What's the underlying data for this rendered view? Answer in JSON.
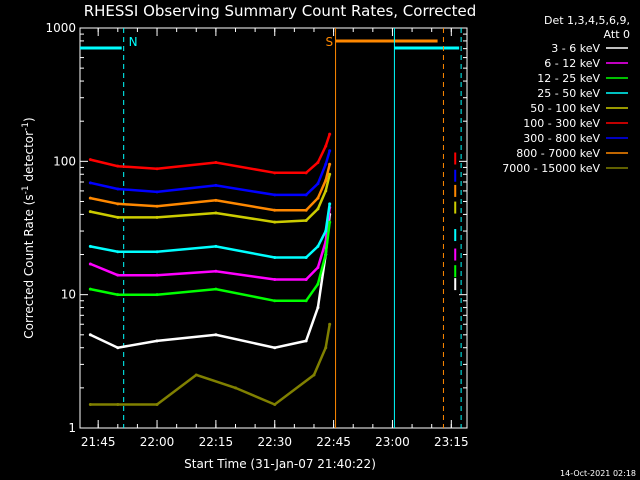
{
  "chart_data": {
    "type": "line",
    "title": "RHESSI Observing Summary Count Rates, Corrected",
    "xlabel": "Start Time (31-Jan-07 21:40:22)",
    "ylabel_prefix": "Corrected Count Rate (s",
    "ylabel_sup1": "-1",
    "ylabel_mid": " detector",
    "ylabel_sup2": "-1",
    "ylabel_suffix": ")",
    "ylog": true,
    "ylim": [
      1,
      1000
    ],
    "xlim": [
      "21:40:22",
      "23:19:00"
    ],
    "x_ticks": [
      "21:45",
      "22:00",
      "22:15",
      "22:30",
      "22:45",
      "23:00",
      "23:15"
    ],
    "y_ticks": [
      "1",
      "10",
      "100",
      "1000"
    ],
    "legend_header": [
      "Det 1,3,4,5,6,9,",
      "Att 0"
    ],
    "series": [
      {
        "name": "3 - 6 keV",
        "color": "#ffffff",
        "values": [
          {
            "t": "21:43",
            "v": 5.0
          },
          {
            "t": "21:50",
            "v": 4.0
          },
          {
            "t": "22:00",
            "v": 4.5
          },
          {
            "t": "22:15",
            "v": 5.0
          },
          {
            "t": "22:30",
            "v": 4.0
          },
          {
            "t": "22:38",
            "v": 4.5
          },
          {
            "t": "22:41",
            "v": 8
          },
          {
            "t": "22:43",
            "v": 20
          },
          {
            "t": "22:44",
            "v": 40
          },
          {
            "t": "23:16",
            "v": 12
          }
        ]
      },
      {
        "name": "6 - 12 keV",
        "color": "#ff00ff",
        "values": [
          {
            "t": "21:43",
            "v": 17
          },
          {
            "t": "21:50",
            "v": 14
          },
          {
            "t": "22:00",
            "v": 14
          },
          {
            "t": "22:15",
            "v": 15
          },
          {
            "t": "22:30",
            "v": 13
          },
          {
            "t": "22:38",
            "v": 13
          },
          {
            "t": "22:41",
            "v": 16
          },
          {
            "t": "22:43",
            "v": 25
          },
          {
            "t": "22:44",
            "v": 45
          },
          {
            "t": "23:16",
            "v": 20
          }
        ]
      },
      {
        "name": "12 - 25 keV",
        "color": "#00ff00",
        "values": [
          {
            "t": "21:43",
            "v": 11
          },
          {
            "t": "21:50",
            "v": 10
          },
          {
            "t": "22:00",
            "v": 10
          },
          {
            "t": "22:15",
            "v": 11
          },
          {
            "t": "22:30",
            "v": 9
          },
          {
            "t": "22:38",
            "v": 9
          },
          {
            "t": "22:41",
            "v": 12
          },
          {
            "t": "22:43",
            "v": 20
          },
          {
            "t": "22:44",
            "v": 35
          },
          {
            "t": "23:16",
            "v": 15
          }
        ]
      },
      {
        "name": "25 - 50 keV",
        "color": "#00ffff",
        "values": [
          {
            "t": "21:43",
            "v": 23
          },
          {
            "t": "21:50",
            "v": 21
          },
          {
            "t": "22:00",
            "v": 21
          },
          {
            "t": "22:15",
            "v": 23
          },
          {
            "t": "22:30",
            "v": 19
          },
          {
            "t": "22:38",
            "v": 19
          },
          {
            "t": "22:41",
            "v": 23
          },
          {
            "t": "22:43",
            "v": 30
          },
          {
            "t": "22:44",
            "v": 48
          },
          {
            "t": "23:16",
            "v": 28
          }
        ]
      },
      {
        "name": "50 - 100 keV",
        "color": "#cccc00",
        "values": [
          {
            "t": "21:43",
            "v": 42
          },
          {
            "t": "21:50",
            "v": 38
          },
          {
            "t": "22:00",
            "v": 38
          },
          {
            "t": "22:15",
            "v": 41
          },
          {
            "t": "22:30",
            "v": 35
          },
          {
            "t": "22:38",
            "v": 36
          },
          {
            "t": "22:41",
            "v": 44
          },
          {
            "t": "22:43",
            "v": 60
          },
          {
            "t": "22:44",
            "v": 80
          },
          {
            "t": "23:16",
            "v": 45
          }
        ]
      },
      {
        "name": "100 - 300 keV",
        "color": "#ff0000",
        "values": [
          {
            "t": "21:43",
            "v": 103
          },
          {
            "t": "21:50",
            "v": 92
          },
          {
            "t": "22:00",
            "v": 88
          },
          {
            "t": "22:15",
            "v": 98
          },
          {
            "t": "22:30",
            "v": 82
          },
          {
            "t": "22:38",
            "v": 82
          },
          {
            "t": "22:41",
            "v": 98
          },
          {
            "t": "22:43",
            "v": 130
          },
          {
            "t": "22:44",
            "v": 160
          },
          {
            "t": "23:16",
            "v": 105
          }
        ]
      },
      {
        "name": "300 - 800 keV",
        "color": "#0000ff",
        "values": [
          {
            "t": "21:43",
            "v": 69
          },
          {
            "t": "21:50",
            "v": 62
          },
          {
            "t": "22:00",
            "v": 59
          },
          {
            "t": "22:15",
            "v": 66
          },
          {
            "t": "22:30",
            "v": 56
          },
          {
            "t": "22:38",
            "v": 56
          },
          {
            "t": "22:41",
            "v": 68
          },
          {
            "t": "22:43",
            "v": 95
          },
          {
            "t": "22:44",
            "v": 120
          },
          {
            "t": "23:16",
            "v": 78
          }
        ]
      },
      {
        "name": "800 - 7000 keV",
        "color": "#ff8800",
        "values": [
          {
            "t": "21:43",
            "v": 53
          },
          {
            "t": "21:50",
            "v": 48
          },
          {
            "t": "22:00",
            "v": 46
          },
          {
            "t": "22:15",
            "v": 51
          },
          {
            "t": "22:30",
            "v": 43
          },
          {
            "t": "22:38",
            "v": 43
          },
          {
            "t": "22:41",
            "v": 53
          },
          {
            "t": "22:43",
            "v": 72
          },
          {
            "t": "22:44",
            "v": 95
          },
          {
            "t": "23:16",
            "v": 60
          }
        ]
      },
      {
        "name": "7000 - 15000 keV",
        "color": "#808000",
        "values": [
          {
            "t": "21:43",
            "v": 1.5
          },
          {
            "t": "21:50",
            "v": 1.5
          },
          {
            "t": "22:00",
            "v": 1.5
          },
          {
            "t": "22:10",
            "v": 2.5
          },
          {
            "t": "22:20",
            "v": 2.0
          },
          {
            "t": "22:30",
            "v": 1.5
          },
          {
            "t": "22:40",
            "v": 2.5
          },
          {
            "t": "22:43",
            "v": 4
          },
          {
            "t": "22:44",
            "v": 6
          }
        ]
      }
    ],
    "markers": [
      {
        "label": "N",
        "color": "#00ffff",
        "t": "21:51:30",
        "style": "dashed"
      },
      {
        "label": "S",
        "color": "#ff8800",
        "t": "22:45:30",
        "style": "solid"
      }
    ],
    "segments": [
      {
        "color": "#00ffff",
        "t_start": "21:40:22",
        "t_end": "21:51:00",
        "label": "night"
      },
      {
        "color": "#ff8800",
        "t_start": "22:45:30",
        "t_end": "23:11:30",
        "label": "saa"
      },
      {
        "color": "#00ffff",
        "t_start": "23:00:30",
        "t_end": "23:17:00",
        "label": "night"
      }
    ],
    "extra_lines": [
      {
        "color": "#00ffff",
        "t": "23:00:30",
        "style": "solid"
      },
      {
        "color": "#ff8800",
        "t": "23:13:00",
        "style": "dashed"
      },
      {
        "color": "#00ffff",
        "t": "23:17:30",
        "style": "dashed"
      }
    ]
  },
  "footer": "14-Oct-2021 02:18"
}
